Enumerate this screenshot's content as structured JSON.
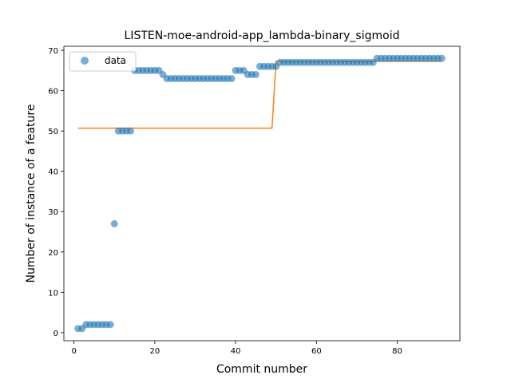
{
  "chart_data": {
    "type": "scatter",
    "title": "LISTEN-moe-android-app_lambda-binary_sigmoid",
    "xlabel": "Commit number",
    "ylabel": "Number of instance of a feature",
    "xlim": [
      -2.5,
      95.5
    ],
    "ylim": [
      -2.0,
      71.0
    ],
    "xticks": [
      0,
      20,
      40,
      60,
      80
    ],
    "yticks": [
      0,
      10,
      20,
      30,
      40,
      50,
      60,
      70
    ],
    "grid": false,
    "legend": {
      "position": "top-left",
      "entries": [
        "data"
      ]
    },
    "series": [
      {
        "name": "data",
        "kind": "scatter",
        "color": "#1f77b4",
        "x": [
          1,
          2,
          3,
          4,
          5,
          6,
          7,
          8,
          9,
          10,
          11,
          12,
          13,
          14,
          15,
          16,
          17,
          18,
          19,
          20,
          21,
          22,
          23,
          24,
          25,
          26,
          27,
          28,
          29,
          30,
          31,
          32,
          33,
          34,
          35,
          36,
          37,
          38,
          39,
          40,
          41,
          42,
          43,
          44,
          45,
          46,
          47,
          48,
          49,
          50,
          51,
          52,
          53,
          54,
          55,
          56,
          57,
          58,
          59,
          60,
          61,
          62,
          63,
          64,
          65,
          66,
          67,
          68,
          69,
          70,
          71,
          72,
          73,
          74,
          75,
          76,
          77,
          78,
          79,
          80,
          81,
          82,
          83,
          84,
          85,
          86,
          87,
          88,
          89,
          90,
          91
        ],
        "y": [
          1,
          1,
          2,
          2,
          2,
          2,
          2,
          2,
          2,
          27,
          50,
          50,
          50,
          50,
          65,
          65,
          65,
          65,
          65,
          65,
          65,
          64,
          63,
          63,
          63,
          63,
          63,
          63,
          63,
          63,
          63,
          63,
          63,
          63,
          63,
          63,
          63,
          63,
          63,
          65,
          65,
          65,
          64,
          64,
          64,
          66,
          66,
          66,
          66,
          66,
          67,
          67,
          67,
          67,
          67,
          67,
          67,
          67,
          67,
          67,
          67,
          67,
          67,
          67,
          67,
          67,
          67,
          67,
          67,
          67,
          67,
          67,
          67,
          67,
          68,
          68,
          68,
          68,
          68,
          68,
          68,
          68,
          68,
          68,
          68,
          68,
          68,
          68,
          68,
          68,
          68
        ]
      },
      {
        "name": "",
        "kind": "step-line",
        "color": "#ff7f0e",
        "x": [
          1,
          49,
          50,
          91
        ],
        "y": [
          50.7,
          50.7,
          67.3,
          67.3
        ]
      }
    ]
  }
}
